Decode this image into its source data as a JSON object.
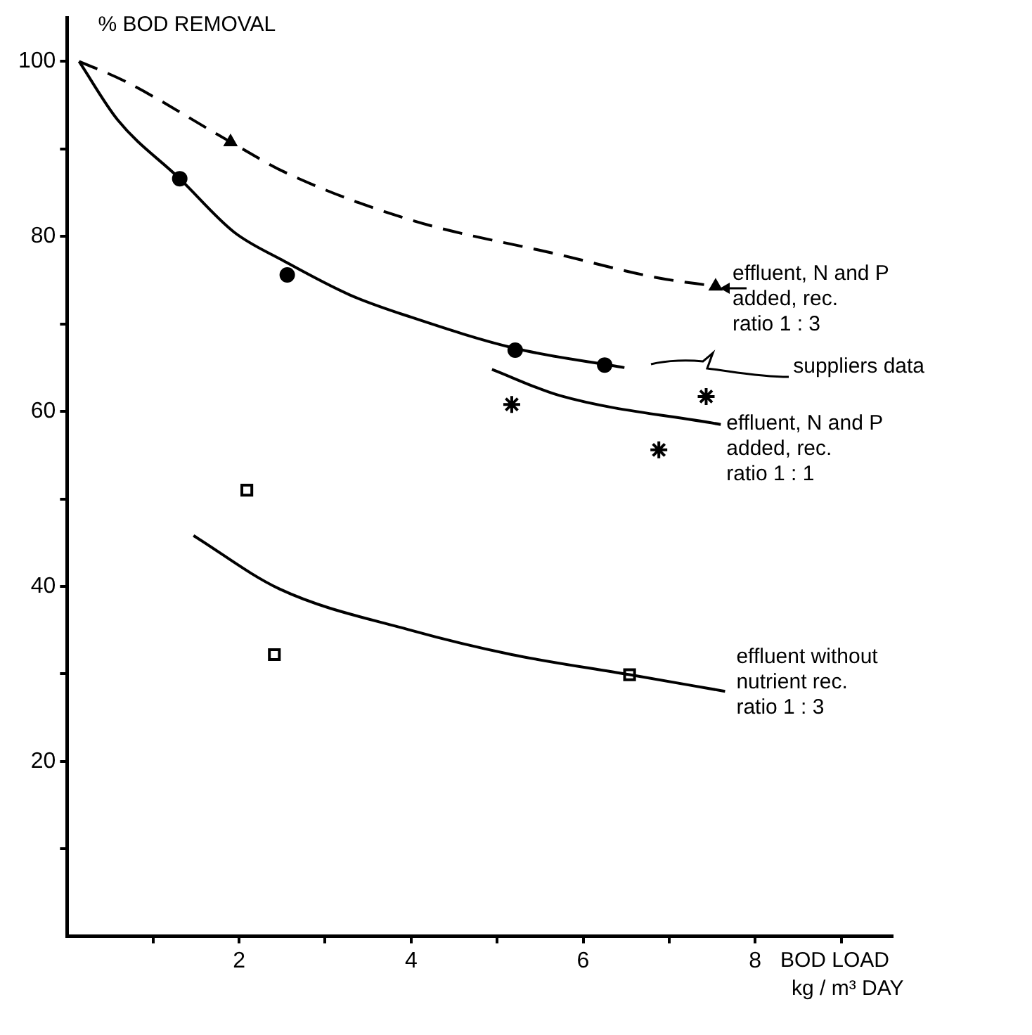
{
  "chart_data": {
    "type": "line",
    "xlabel": "BOD LOAD\nkg / m³ DAY",
    "ylabel": "% BOD REMOVAL",
    "xlim": [
      0,
      9.6
    ],
    "ylim": [
      0,
      105
    ],
    "xticks": [
      {
        "value": 1,
        "label": null
      },
      2,
      {
        "value": 3,
        "label": null
      },
      4,
      {
        "value": 5,
        "label": null
      },
      6,
      {
        "value": 7,
        "label": null
      },
      8,
      {
        "value": 9,
        "label": null
      }
    ],
    "yticks": [
      {
        "value": 10,
        "label": null
      },
      20,
      {
        "value": 30,
        "label": null
      },
      40,
      {
        "value": 50,
        "label": null
      },
      60,
      {
        "value": 70,
        "label": null
      },
      80,
      {
        "value": 90,
        "label": null
      },
      100
    ],
    "grid": false,
    "legend": "right",
    "series": [
      {
        "name": "effluent, N and P\nadded, rec.\nratio 1 : 3",
        "type": "line",
        "line_style": "dashed",
        "marker": "none",
        "color": "#000000",
        "x": [
          0.14,
          0.66,
          1.9,
          2.54,
          3.99,
          5.73,
          6.85,
          7.54
        ],
        "values": [
          100,
          97.8,
          90.8,
          87.3,
          81.9,
          77.9,
          75.3,
          74.3
        ]
      },
      {
        "type": "scatter",
        "marker": "triangle",
        "color": "#000000",
        "x": [
          1.9,
          7.54
        ],
        "values": [
          90.8,
          74.3
        ]
      },
      {
        "name": "suppliers data",
        "type": "line",
        "line_style": "solid",
        "marker": "none",
        "color": "#000000",
        "x": [
          0.14,
          0.59,
          1.31,
          1.94,
          2.5,
          3.29,
          3.99,
          5.21,
          6.48
        ],
        "values": [
          100,
          93.3,
          86.6,
          80.5,
          77.3,
          73.3,
          70.8,
          67.2,
          65.0
        ]
      },
      {
        "type": "scatter",
        "marker": "circle",
        "color": "#000000",
        "x": [
          1.31,
          2.56,
          5.21,
          6.25
        ],
        "values": [
          86.6,
          75.6,
          67.0,
          65.3
        ]
      },
      {
        "name": "effluent, N and P\nadded, rec.\nratio 1 : 1",
        "type": "line",
        "line_style": "solid",
        "marker": "none",
        "color": "#000000",
        "x": [
          4.94,
          5.73,
          7.6
        ],
        "values": [
          64.8,
          61.8,
          58.5
        ]
      },
      {
        "type": "scatter",
        "marker": "cross",
        "color": "#000000",
        "x": [
          5.17,
          6.88,
          7.43
        ],
        "values": [
          60.8,
          55.6,
          61.7
        ]
      },
      {
        "name": "effluent without\nnutrient rec.\nratio 1 : 3",
        "type": "line",
        "line_style": "solid",
        "marker": "none",
        "color": "#000000",
        "x": [
          1.47,
          2.47,
          3.99,
          5.17,
          6.54,
          7.65
        ],
        "values": [
          45.8,
          39.7,
          35.0,
          32.2,
          29.9,
          28.0
        ]
      },
      {
        "type": "scatter",
        "marker": "square",
        "color": "#000000",
        "x": [
          2.09,
          2.41,
          6.54
        ],
        "values": [
          51.0,
          32.2,
          29.9
        ]
      }
    ]
  }
}
